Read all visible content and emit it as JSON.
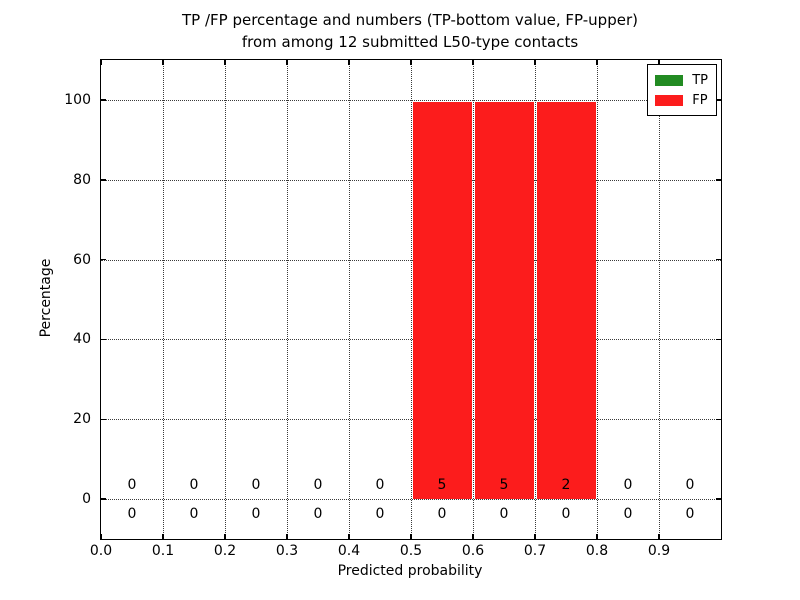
{
  "title": {
    "line1": "TP /FP percentage and numbers (TP-bottom value, FP-upper)",
    "line2": "from among 12 submitted L50-type contacts"
  },
  "axes": {
    "xlabel": "Predicted probability",
    "ylabel": "Percentage",
    "x_tick_labels": [
      "0.0",
      "0.1",
      "0.2",
      "0.3",
      "0.4",
      "0.5",
      "0.6",
      "0.7",
      "0.8",
      "0.9"
    ],
    "x_tick_values": [
      0.0,
      0.1,
      0.2,
      0.3,
      0.4,
      0.5,
      0.6,
      0.7,
      0.8,
      0.9
    ],
    "y_tick_labels": [
      "0",
      "20",
      "40",
      "60",
      "80",
      "100"
    ],
    "y_tick_values": [
      0,
      20,
      40,
      60,
      80,
      100
    ]
  },
  "legend": {
    "entries": [
      {
        "label": "TP",
        "color": "#228b22"
      },
      {
        "label": "FP",
        "color": "#fc1c1c"
      }
    ]
  },
  "chart_data": {
    "type": "bar",
    "title": "TP /FP percentage and numbers (TP-bottom value, FP-upper)\nfrom among 12 submitted L50-type contacts",
    "xlabel": "Predicted probability",
    "ylabel": "Percentage",
    "xlim": [
      0.0,
      1.0
    ],
    "ylim": [
      -10,
      110
    ],
    "grid": "dotted",
    "legend_position": "upper right",
    "total_submitted_contacts": 12,
    "bin_edges": [
      0.0,
      0.1,
      0.2,
      0.3,
      0.4,
      0.5,
      0.6,
      0.7,
      0.8,
      0.9,
      1.0
    ],
    "bin_centers": [
      0.05,
      0.15,
      0.25,
      0.35,
      0.45,
      0.55,
      0.65,
      0.75,
      0.85,
      0.95
    ],
    "series": [
      {
        "name": "TP",
        "color": "#228b22",
        "counts": [
          0,
          0,
          0,
          0,
          0,
          0,
          0,
          0,
          0,
          0
        ],
        "bar_heights_pct": [
          0,
          0,
          0,
          0,
          0,
          0,
          0,
          0,
          0,
          0
        ]
      },
      {
        "name": "FP",
        "color": "#fc1c1c",
        "counts": [
          0,
          0,
          0,
          0,
          0,
          5,
          5,
          2,
          0,
          0
        ],
        "bar_heights_pct": [
          0,
          0,
          0,
          0,
          0,
          99.5,
          99.5,
          99.5,
          0,
          0
        ]
      }
    ]
  }
}
